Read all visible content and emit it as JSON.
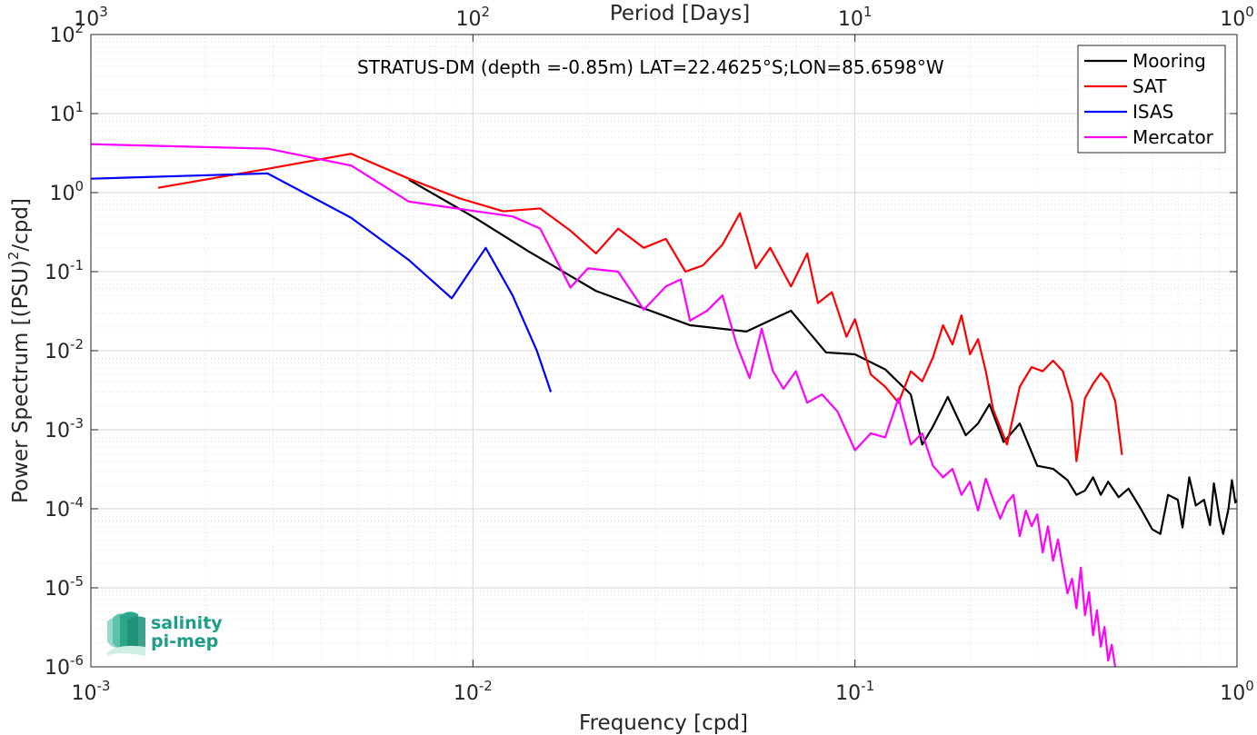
{
  "chart_data": {
    "type": "line",
    "title": "STRATUS-DM (depth =-0.85m) LAT=22.4625°S;LON=85.6598°W",
    "xlabel": "Frequency [cpd]",
    "ylabel_parts": [
      "Power Spectrum [(PSU)",
      "2",
      "/cpd]"
    ],
    "top_xlabel": "Period [Days]",
    "xscale": "log",
    "yscale": "log",
    "xlim": [
      0.001,
      1
    ],
    "ylim": [
      1e-06,
      100
    ],
    "grid": true,
    "minor_grid": true,
    "legend_position": "top-right",
    "x_ticks": [
      {
        "value": 0.001,
        "base": "10",
        "exp": "-3"
      },
      {
        "value": 0.01,
        "base": "10",
        "exp": "-2"
      },
      {
        "value": 0.1,
        "base": "10",
        "exp": "-1"
      },
      {
        "value": 1,
        "base": "10",
        "exp": "0"
      }
    ],
    "top_ticks": [
      {
        "value": 0.001,
        "base": "10",
        "exp": "3"
      },
      {
        "value": 0.01,
        "base": "10",
        "exp": "2"
      },
      {
        "value": 0.1,
        "base": "10",
        "exp": "1"
      },
      {
        "value": 1,
        "base": "10",
        "exp": "0"
      }
    ],
    "y_ticks": [
      {
        "value": 100,
        "base": "10",
        "exp": "2"
      },
      {
        "value": 10,
        "base": "10",
        "exp": "1"
      },
      {
        "value": 1,
        "base": "10",
        "exp": "0"
      },
      {
        "value": 0.1,
        "base": "10",
        "exp": "-1"
      },
      {
        "value": 0.01,
        "base": "10",
        "exp": "-2"
      },
      {
        "value": 0.001,
        "base": "10",
        "exp": "-3"
      },
      {
        "value": 0.0001,
        "base": "10",
        "exp": "-4"
      },
      {
        "value": 1e-05,
        "base": "10",
        "exp": "-5"
      },
      {
        "value": 1e-06,
        "base": "10",
        "exp": "-6"
      }
    ],
    "series": [
      {
        "name": "Mooring",
        "color": "#000000",
        "points": [
          [
            0.0068,
            1.45
          ],
          [
            0.0102,
            0.47
          ],
          [
            0.014,
            0.18
          ],
          [
            0.021,
            0.057
          ],
          [
            0.037,
            0.021
          ],
          [
            0.052,
            0.0175
          ],
          [
            0.068,
            0.032
          ],
          [
            0.084,
            0.0095
          ],
          [
            0.1,
            0.009
          ],
          [
            0.12,
            0.0058
          ],
          [
            0.14,
            0.0028
          ],
          [
            0.15,
            0.00065
          ],
          [
            0.16,
            0.0011
          ],
          [
            0.175,
            0.0026
          ],
          [
            0.195,
            0.00085
          ],
          [
            0.21,
            0.0012
          ],
          [
            0.225,
            0.0021
          ],
          [
            0.245,
            0.0007
          ],
          [
            0.27,
            0.0012
          ],
          [
            0.3,
            0.00035
          ],
          [
            0.33,
            0.00032
          ],
          [
            0.36,
            0.00023
          ],
          [
            0.38,
            0.00015
          ],
          [
            0.4,
            0.00017
          ],
          [
            0.42,
            0.00025
          ],
          [
            0.44,
            0.00015
          ],
          [
            0.46,
            0.00022
          ],
          [
            0.49,
            0.00014
          ],
          [
            0.52,
            0.00018
          ],
          [
            0.56,
            0.0001
          ],
          [
            0.6,
            5.5e-05
          ],
          [
            0.63,
            4.8e-05
          ],
          [
            0.66,
            0.00015
          ],
          [
            0.7,
            0.00013
          ],
          [
            0.72,
            5.8e-05
          ],
          [
            0.75,
            0.00025
          ],
          [
            0.78,
            0.00011
          ],
          [
            0.82,
            0.00013
          ],
          [
            0.85,
            6.2e-05
          ],
          [
            0.87,
            0.00021
          ],
          [
            0.9,
            7.5e-05
          ],
          [
            0.92,
            4.8e-05
          ],
          [
            0.95,
            0.0001
          ],
          [
            0.97,
            0.00023
          ],
          [
            0.99,
            0.00012
          ],
          [
            1.0,
            0.00013
          ]
        ]
      },
      {
        "name": "SAT",
        "color": "#ff0000",
        "points": [
          [
            0.0015,
            1.15
          ],
          [
            0.0029,
            2.0
          ],
          [
            0.0048,
            3.1
          ],
          [
            0.0068,
            1.5
          ],
          [
            0.0092,
            0.85
          ],
          [
            0.012,
            0.58
          ],
          [
            0.015,
            0.63
          ],
          [
            0.018,
            0.33
          ],
          [
            0.021,
            0.17
          ],
          [
            0.024,
            0.35
          ],
          [
            0.028,
            0.2
          ],
          [
            0.032,
            0.26
          ],
          [
            0.036,
            0.1
          ],
          [
            0.04,
            0.12
          ],
          [
            0.045,
            0.22
          ],
          [
            0.05,
            0.55
          ],
          [
            0.055,
            0.11
          ],
          [
            0.06,
            0.2
          ],
          [
            0.068,
            0.065
          ],
          [
            0.075,
            0.17
          ],
          [
            0.08,
            0.04
          ],
          [
            0.087,
            0.055
          ],
          [
            0.095,
            0.015
          ],
          [
            0.1,
            0.025
          ],
          [
            0.11,
            0.005
          ],
          [
            0.12,
            0.0035
          ],
          [
            0.13,
            0.0022
          ],
          [
            0.14,
            0.0055
          ],
          [
            0.15,
            0.0041
          ],
          [
            0.16,
            0.0082
          ],
          [
            0.17,
            0.021
          ],
          [
            0.18,
            0.012
          ],
          [
            0.19,
            0.028
          ],
          [
            0.2,
            0.009
          ],
          [
            0.21,
            0.014
          ],
          [
            0.22,
            0.0055
          ],
          [
            0.23,
            0.0018
          ],
          [
            0.25,
            0.00065
          ],
          [
            0.27,
            0.0035
          ],
          [
            0.29,
            0.0062
          ],
          [
            0.31,
            0.0055
          ],
          [
            0.33,
            0.0075
          ],
          [
            0.35,
            0.0055
          ],
          [
            0.37,
            0.0022
          ],
          [
            0.38,
            0.0004
          ],
          [
            0.4,
            0.0025
          ],
          [
            0.42,
            0.0038
          ],
          [
            0.44,
            0.0052
          ],
          [
            0.46,
            0.004
          ],
          [
            0.48,
            0.0023
          ],
          [
            0.5,
            0.00048
          ]
        ]
      },
      {
        "name": "ISAS",
        "color": "#0000ff",
        "points": [
          [
            0.001,
            1.5
          ],
          [
            0.0029,
            1.75
          ],
          [
            0.0048,
            0.48
          ],
          [
            0.0068,
            0.14
          ],
          [
            0.0088,
            0.046
          ],
          [
            0.0108,
            0.2
          ],
          [
            0.0127,
            0.05
          ],
          [
            0.0147,
            0.01
          ],
          [
            0.016,
            0.003
          ]
        ]
      },
      {
        "name": "Mercator",
        "color": "#ff00ff",
        "points": [
          [
            0.001,
            4.1
          ],
          [
            0.0029,
            3.6
          ],
          [
            0.0048,
            2.2
          ],
          [
            0.0068,
            0.77
          ],
          [
            0.0102,
            0.58
          ],
          [
            0.0127,
            0.5
          ],
          [
            0.015,
            0.35
          ],
          [
            0.018,
            0.063
          ],
          [
            0.02,
            0.11
          ],
          [
            0.024,
            0.1
          ],
          [
            0.028,
            0.033
          ],
          [
            0.032,
            0.065
          ],
          [
            0.035,
            0.08
          ],
          [
            0.037,
            0.024
          ],
          [
            0.041,
            0.032
          ],
          [
            0.045,
            0.05
          ],
          [
            0.049,
            0.012
          ],
          [
            0.053,
            0.0045
          ],
          [
            0.057,
            0.019
          ],
          [
            0.061,
            0.0055
          ],
          [
            0.065,
            0.0033
          ],
          [
            0.07,
            0.0055
          ],
          [
            0.075,
            0.0022
          ],
          [
            0.082,
            0.0028
          ],
          [
            0.09,
            0.0017
          ],
          [
            0.1,
            0.00055
          ],
          [
            0.11,
            0.0009
          ],
          [
            0.12,
            0.0008
          ],
          [
            0.13,
            0.0025
          ],
          [
            0.14,
            0.00065
          ],
          [
            0.15,
            0.0009
          ],
          [
            0.16,
            0.00035
          ],
          [
            0.17,
            0.00025
          ],
          [
            0.18,
            0.00032
          ],
          [
            0.19,
            0.00015
          ],
          [
            0.2,
            0.00022
          ],
          [
            0.21,
            9.5e-05
          ],
          [
            0.22,
            0.00024
          ],
          [
            0.23,
            0.00013
          ],
          [
            0.24,
            7.5e-05
          ],
          [
            0.25,
            0.00012
          ],
          [
            0.26,
            0.00015
          ],
          [
            0.27,
            4.5e-05
          ],
          [
            0.28,
            9.5e-05
          ],
          [
            0.29,
            6e-05
          ],
          [
            0.3,
            8.5e-05
          ],
          [
            0.31,
            2.8e-05
          ],
          [
            0.32,
            6e-05
          ],
          [
            0.33,
            2.2e-05
          ],
          [
            0.34,
            4.1e-05
          ],
          [
            0.35,
            1.8e-05
          ],
          [
            0.36,
            8.5e-06
          ],
          [
            0.37,
            1.3e-05
          ],
          [
            0.38,
            5.5e-06
          ],
          [
            0.39,
            1.8e-05
          ],
          [
            0.4,
            4.5e-06
          ],
          [
            0.41,
            8.8e-06
          ],
          [
            0.42,
            2.5e-06
          ],
          [
            0.43,
            5.2e-06
          ],
          [
            0.44,
            1.8e-06
          ],
          [
            0.45,
            3.2e-06
          ],
          [
            0.46,
            1.2e-06
          ],
          [
            0.47,
            1.9e-06
          ],
          [
            0.48,
            1e-06
          ]
        ]
      }
    ]
  },
  "logo": {
    "line1": "salinity",
    "line2": "pi-mep",
    "color": "#1d9e88"
  }
}
